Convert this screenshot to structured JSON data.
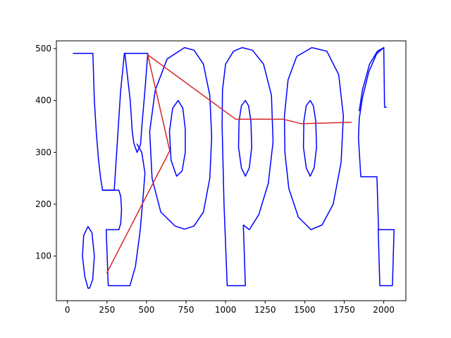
{
  "chart_data": {
    "type": "line",
    "title": "",
    "xlabel": "",
    "ylabel": "",
    "xlim": [
      -70,
      2140
    ],
    "ylim": [
      14,
      515
    ],
    "grid": false,
    "x_ticks": [
      0,
      250,
      500,
      750,
      1000,
      1250,
      1500,
      1750,
      2000
    ],
    "y_ticks": [
      100,
      200,
      300,
      400,
      500
    ],
    "series": [
      {
        "color": "#0000ff",
        "segments": [
          [
            [
              37,
              491
            ],
            [
              161,
              491
            ],
            [
              170,
              400
            ],
            [
              182,
              340
            ],
            [
              195,
              290
            ],
            [
              210,
              250
            ],
            [
              222,
              227
            ],
            [
              296,
              227
            ],
            [
              336,
              417
            ],
            [
              360,
              491
            ],
            [
              508,
              491
            ]
          ],
          [
            [
              508,
              491
            ],
            [
              490,
              420
            ],
            [
              472,
              355
            ],
            [
              462,
              315
            ],
            [
              440,
              300
            ],
            [
              420,
              317
            ],
            [
              410,
              340
            ],
            [
              397,
              400
            ],
            [
              363,
              491
            ]
          ],
          [
            [
              222,
              227
            ],
            [
              325,
              227
            ],
            [
              337,
              215
            ],
            [
              342,
              190
            ],
            [
              337,
              163
            ],
            [
              325,
              151
            ],
            [
              245,
              151
            ],
            [
              258,
              43
            ],
            [
              395,
              43
            ],
            [
              430,
              80
            ],
            [
              460,
              150
            ],
            [
              480,
              220
            ],
            [
              490,
              260
            ],
            [
              470,
              300
            ],
            [
              440,
              316
            ]
          ],
          [
            [
              130,
              38
            ],
            [
              110,
              60
            ],
            [
              95,
              100
            ],
            [
              103,
              140
            ],
            [
              130,
              157
            ],
            [
              155,
              145
            ],
            [
              170,
              100
            ],
            [
              160,
              55
            ],
            [
              140,
              38
            ],
            [
              130,
              38
            ]
          ],
          [
            [
              740,
              502
            ],
            [
              630,
              480
            ],
            [
              555,
              420
            ],
            [
              520,
              340
            ],
            [
              535,
              250
            ],
            [
              590,
              185
            ],
            [
              680,
              158
            ],
            [
              740,
              152
            ],
            [
              800,
              158
            ],
            [
              860,
              185
            ],
            [
              900,
              250
            ],
            [
              912,
              330
            ],
            [
              900,
              410
            ],
            [
              860,
              470
            ],
            [
              800,
              497
            ],
            [
              740,
              502
            ]
          ],
          [
            [
              700,
              400
            ],
            [
              665,
              385
            ],
            [
              645,
              340
            ],
            [
              655,
              285
            ],
            [
              690,
              254
            ],
            [
              725,
              264
            ],
            [
              745,
              300
            ],
            [
              745,
              345
            ],
            [
              730,
              385
            ],
            [
              700,
              400
            ]
          ],
          [
            [
              1105,
              502
            ],
            [
              1050,
              495
            ],
            [
              1000,
              470
            ],
            [
              980,
              420
            ],
            [
              978,
              350
            ],
            [
              990,
              200
            ],
            [
              1010,
              43
            ],
            [
              1125,
              43
            ],
            [
              1112,
              160
            ],
            [
              1150,
              151
            ],
            [
              1210,
              180
            ],
            [
              1270,
              240
            ],
            [
              1300,
              320
            ],
            [
              1290,
              410
            ],
            [
              1240,
              470
            ],
            [
              1170,
              497
            ],
            [
              1105,
              502
            ]
          ],
          [
            [
              1125,
              400
            ],
            [
              1100,
              390
            ],
            [
              1085,
              360
            ],
            [
              1082,
              310
            ],
            [
              1100,
              270
            ],
            [
              1125,
              254
            ],
            [
              1150,
              270
            ],
            [
              1165,
              310
            ],
            [
              1160,
              360
            ],
            [
              1145,
              390
            ],
            [
              1125,
              400
            ]
          ],
          [
            [
              1545,
              502
            ],
            [
              1450,
              485
            ],
            [
              1395,
              440
            ],
            [
              1372,
              370
            ],
            [
              1375,
              300
            ],
            [
              1400,
              230
            ],
            [
              1460,
              175
            ],
            [
              1540,
              151
            ],
            [
              1610,
              160
            ],
            [
              1680,
              200
            ],
            [
              1730,
              280
            ],
            [
              1745,
              370
            ],
            [
              1715,
              450
            ],
            [
              1640,
              495
            ],
            [
              1545,
              502
            ]
          ],
          [
            [
              1535,
              400
            ],
            [
              1510,
              390
            ],
            [
              1495,
              360
            ],
            [
              1492,
              310
            ],
            [
              1510,
              270
            ],
            [
              1535,
              254
            ],
            [
              1560,
              270
            ],
            [
              1575,
              310
            ],
            [
              1570,
              360
            ],
            [
              1555,
              390
            ],
            [
              1535,
              400
            ]
          ],
          [
            [
              2000,
              502
            ],
            [
              1960,
              495
            ],
            [
              1910,
              470
            ],
            [
              1865,
              420
            ],
            [
              1845,
              380
            ],
            [
              1865,
              420
            ],
            [
              1910,
              470
            ],
            [
              1960,
              495
            ],
            [
              2000,
              502
            ],
            [
              2005,
              387
            ],
            [
              2016,
              387
            ]
          ],
          [
            [
              2000,
              502
            ],
            [
              1955,
              490
            ],
            [
              1905,
              455
            ],
            [
              1865,
              405
            ],
            [
              1845,
              365
            ],
            [
              1840,
              328
            ],
            [
              1855,
              253
            ],
            [
              1957,
              253
            ],
            [
              1967,
              151
            ],
            [
              2065,
              151
            ],
            [
              2055,
              43
            ],
            [
              1975,
              43
            ],
            [
              1965,
              151
            ]
          ]
        ]
      },
      {
        "color": "#d62728",
        "points": [
          [
            250,
            68
          ],
          [
            647,
            303
          ],
          [
            508,
            488
          ],
          [
            1063,
            364
          ],
          [
            1363,
            364
          ],
          [
            1480,
            355
          ],
          [
            1795,
            358
          ]
        ]
      }
    ]
  }
}
